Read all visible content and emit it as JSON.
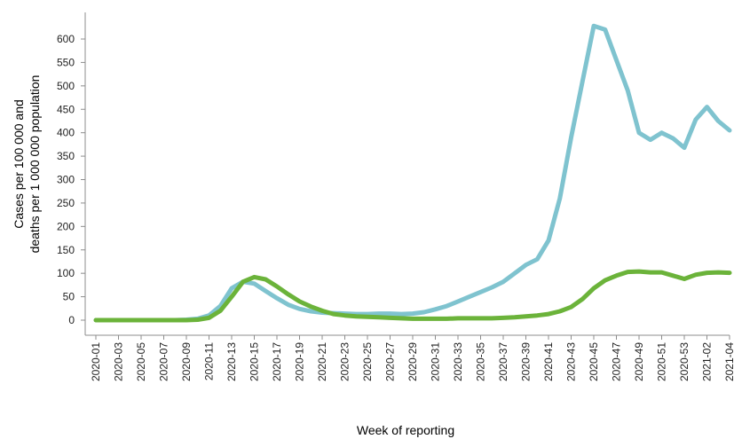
{
  "chart_data": {
    "type": "line",
    "title": "",
    "xlabel": "Week of reporting",
    "ylabel_line1": "Cases per 100 000 and",
    "ylabel_line2": "deaths per 1 000 000 population",
    "ylim": [
      0,
      630
    ],
    "yticks": [
      0,
      50,
      100,
      150,
      200,
      250,
      300,
      350,
      400,
      450,
      500,
      550,
      600
    ],
    "grid": false,
    "legend": "none",
    "x": [
      "2020-01",
      "2020-02",
      "2020-03",
      "2020-04",
      "2020-05",
      "2020-06",
      "2020-07",
      "2020-08",
      "2020-09",
      "2020-10",
      "2020-11",
      "2020-12",
      "2020-13",
      "2020-14",
      "2020-15",
      "2020-16",
      "2020-17",
      "2020-18",
      "2020-19",
      "2020-20",
      "2020-21",
      "2020-22",
      "2020-23",
      "2020-24",
      "2020-25",
      "2020-26",
      "2020-27",
      "2020-28",
      "2020-29",
      "2020-30",
      "2020-31",
      "2020-32",
      "2020-33",
      "2020-34",
      "2020-35",
      "2020-36",
      "2020-37",
      "2020-38",
      "2020-39",
      "2020-40",
      "2020-41",
      "2020-42",
      "2020-43",
      "2020-44",
      "2020-45",
      "2020-46",
      "2020-47",
      "2020-48",
      "2020-49",
      "2020-50",
      "2020-51",
      "2020-52",
      "2020-53",
      "2021-01",
      "2021-02",
      "2021-03",
      "2021-04"
    ],
    "xtick_labels": [
      "2020-01",
      "2020-03",
      "2020-05",
      "2020-07",
      "2020-09",
      "2020-11",
      "2020-13",
      "2020-15",
      "2020-17",
      "2020-19",
      "2020-21",
      "2020-23",
      "2020-25",
      "2020-27",
      "2020-29",
      "2020-31",
      "2020-33",
      "2020-35",
      "2020-37",
      "2020-39",
      "2020-41",
      "2020-43",
      "2020-45",
      "2020-47",
      "2020-49",
      "2020-51",
      "2020-53",
      "2021-02",
      "2021-04"
    ],
    "series": [
      {
        "color": "#7fc3cf",
        "values": [
          0,
          0,
          0,
          0,
          0,
          0,
          0,
          0,
          1,
          3,
          10,
          30,
          68,
          82,
          78,
          62,
          47,
          33,
          24,
          19,
          16,
          15,
          14,
          13,
          13,
          14,
          14,
          13,
          14,
          17,
          23,
          30,
          40,
          50,
          60,
          70,
          82,
          100,
          118,
          130,
          170,
          260,
          390,
          510,
          628,
          620,
          555,
          490,
          400,
          385,
          400,
          388,
          368,
          428,
          455,
          425,
          405
        ]
      },
      {
        "color": "#6bb33a",
        "values": [
          0,
          0,
          0,
          0,
          0,
          0,
          0,
          0,
          0,
          1,
          5,
          20,
          50,
          82,
          92,
          87,
          72,
          55,
          40,
          29,
          20,
          13,
          10,
          8,
          7,
          6,
          5,
          4,
          3,
          3,
          3,
          3,
          4,
          4,
          4,
          4,
          5,
          6,
          8,
          10,
          13,
          19,
          28,
          45,
          68,
          85,
          95,
          103,
          104,
          102,
          102,
          95,
          88,
          97,
          101,
          102,
          101
        ]
      }
    ]
  }
}
